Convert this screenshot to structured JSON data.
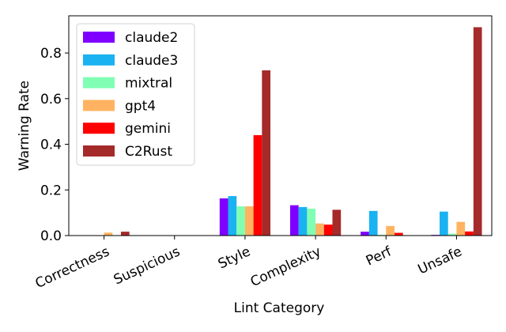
{
  "chart_data": {
    "type": "bar",
    "xlabel": "Lint Category",
    "ylabel": "Warning Rate",
    "categories": [
      "Correctness",
      "Suspicious",
      "Style",
      "Complexity",
      "Perf",
      "Unsafe"
    ],
    "series": [
      {
        "name": "claude2",
        "color": "#8000ff",
        "values": [
          0,
          0,
          0.163,
          0.133,
          0.017,
          0.003
        ]
      },
      {
        "name": "claude3",
        "color": "#1ab2f0",
        "values": [
          0,
          0,
          0.173,
          0.125,
          0.108,
          0.105
        ]
      },
      {
        "name": "mixtral",
        "color": "#80ffb4",
        "values": [
          0,
          0,
          0.128,
          0.118,
          0.003,
          0.008
        ]
      },
      {
        "name": "gpt4",
        "color": "#ffb360",
        "values": [
          0.013,
          0,
          0.128,
          0.053,
          0.042,
          0.06
        ]
      },
      {
        "name": "gemini",
        "color": "#ff0000",
        "values": [
          0,
          0,
          0.44,
          0.048,
          0.012,
          0.018
        ]
      },
      {
        "name": "C2Rust",
        "color": "#a52a2a",
        "values": [
          0.017,
          0,
          0.724,
          0.113,
          0,
          0.913
        ]
      }
    ],
    "ylim": [
      0,
      0.963
    ],
    "yticks": [
      {
        "value": 0,
        "label": "0.0"
      },
      {
        "value": 0.2,
        "label": "0.2"
      },
      {
        "value": 0.4,
        "label": "0.4"
      },
      {
        "value": 0.6,
        "label": "0.6"
      },
      {
        "value": 0.8,
        "label": "0.8"
      }
    ],
    "legend": "upper left"
  }
}
